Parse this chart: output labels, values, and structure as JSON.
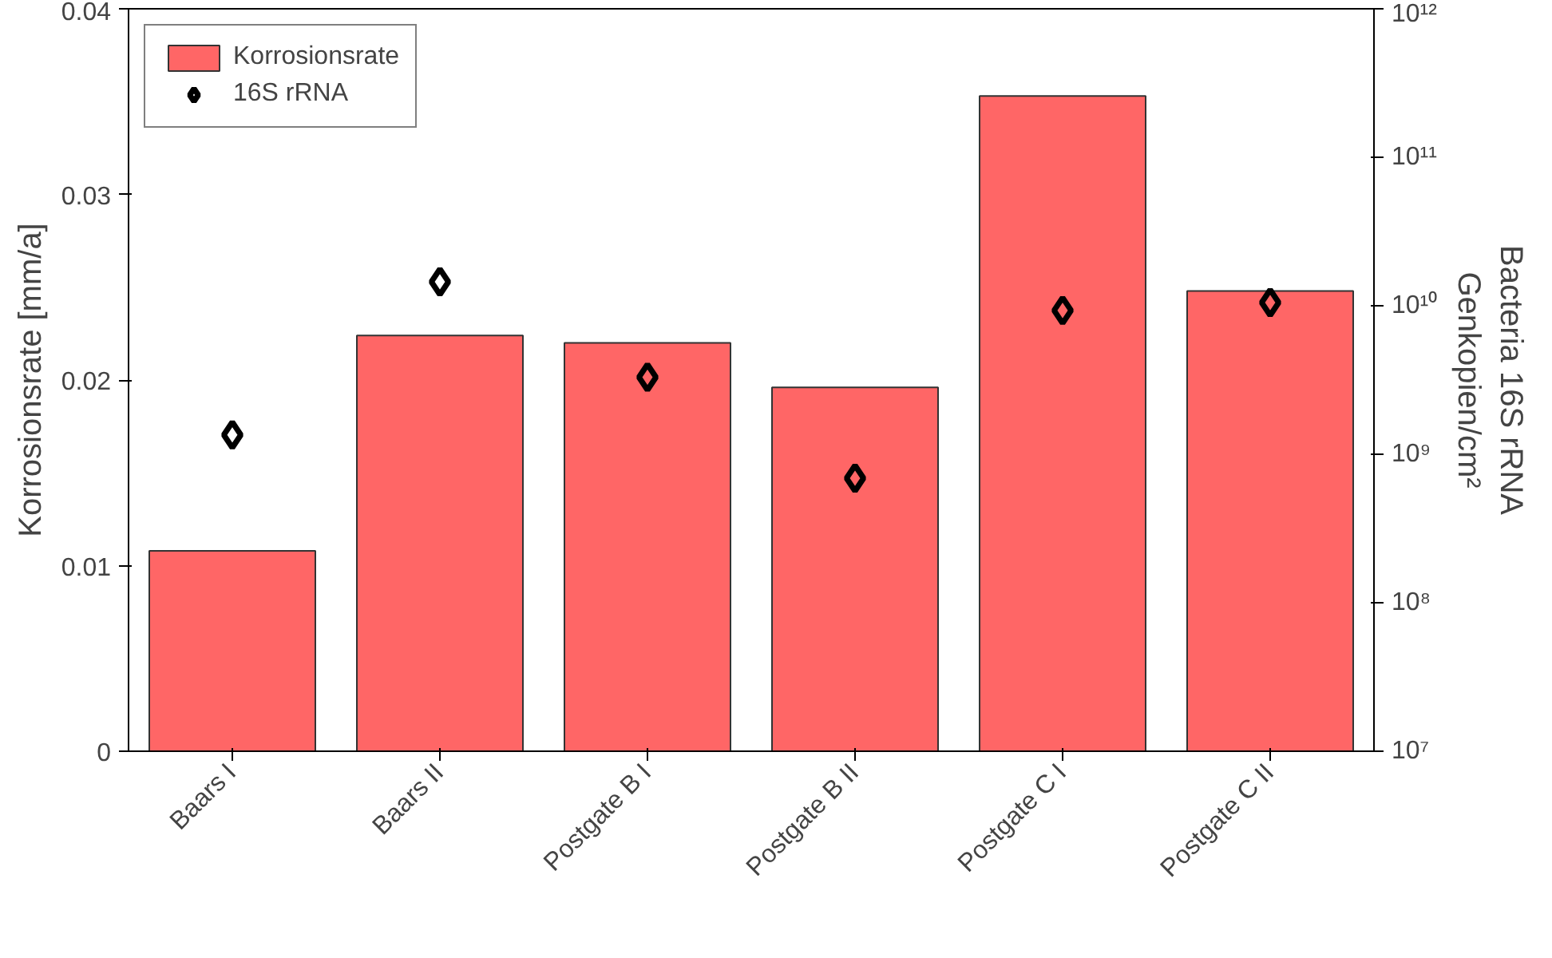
{
  "chart_data": {
    "type": "bar",
    "ylabel": "Korrosionsrate [mm/a]",
    "y2label": "Bacteria 16S rRNA\nGenkopien/cm²",
    "categories": [
      "Baars I",
      "Baars II",
      "Postgate B I",
      "Postgate B II",
      "Postgate C I",
      "Postgate C II"
    ],
    "series": [
      {
        "name": "Korrosionsrate",
        "color": "#ff6666",
        "values": [
          0.0108,
          0.0224,
          0.022,
          0.0196,
          0.0353,
          0.0248
        ]
      },
      {
        "name": "16S rRNA",
        "type": "scatter",
        "axis": "y2",
        "color": "#000000",
        "marker": "diamond",
        "values": [
          1350000000.0,
          14500000000.0,
          3300000000.0,
          690000000.0,
          9300000000.0,
          10500000000.0
        ]
      }
    ],
    "ylim": [
      0,
      0.04
    ],
    "yticks": [
      0,
      0.01,
      0.02,
      0.03,
      0.04
    ],
    "y2lim": [
      10000000.0,
      1000000000000.0
    ],
    "y2ticks": [
      {
        "value": 10000000.0,
        "label": "10⁷"
      },
      {
        "value": 100000000.0,
        "label": "10⁸"
      },
      {
        "value": 1000000000.0,
        "label": "10⁹"
      },
      {
        "value": 10000000000.0,
        "label": "10¹⁰"
      },
      {
        "value": 100000000000.0,
        "label": "10¹¹"
      },
      {
        "value": 1000000000000.0,
        "label": "10¹²"
      }
    ],
    "log": "y2",
    "grid": false,
    "legend": "top left"
  }
}
